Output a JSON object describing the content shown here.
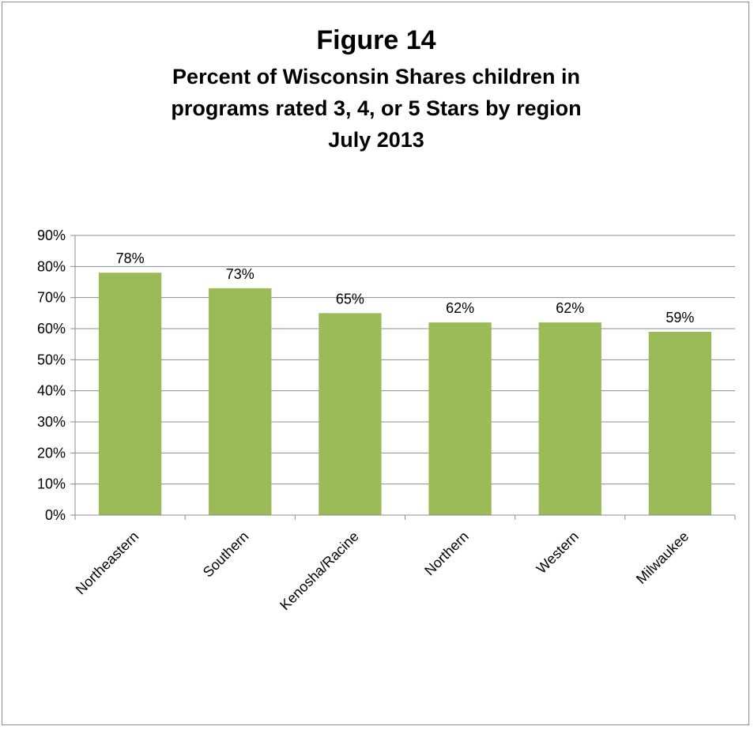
{
  "chart_data": {
    "type": "bar",
    "title": "Figure 14",
    "subtitle_lines": [
      "Percent of Wisconsin Shares children in",
      "programs rated 3, 4, or 5 Stars by region",
      "July 2013"
    ],
    "categories": [
      "Northeastern",
      "Southern",
      "Kenosha/Racine",
      "Northern",
      "Western",
      "Milwaukee"
    ],
    "values": [
      78,
      73,
      65,
      62,
      62,
      59
    ],
    "data_labels": [
      "78%",
      "73%",
      "65%",
      "62%",
      "62%",
      "59%"
    ],
    "y_ticks": [
      "0%",
      "10%",
      "20%",
      "30%",
      "40%",
      "50%",
      "60%",
      "70%",
      "80%",
      "90%"
    ],
    "ylim": [
      0,
      90
    ],
    "xlabel": "",
    "ylabel": "",
    "grid": true,
    "legend": "none",
    "bar_color": "#9bbb59",
    "grid_color": "#8c8c8c"
  }
}
